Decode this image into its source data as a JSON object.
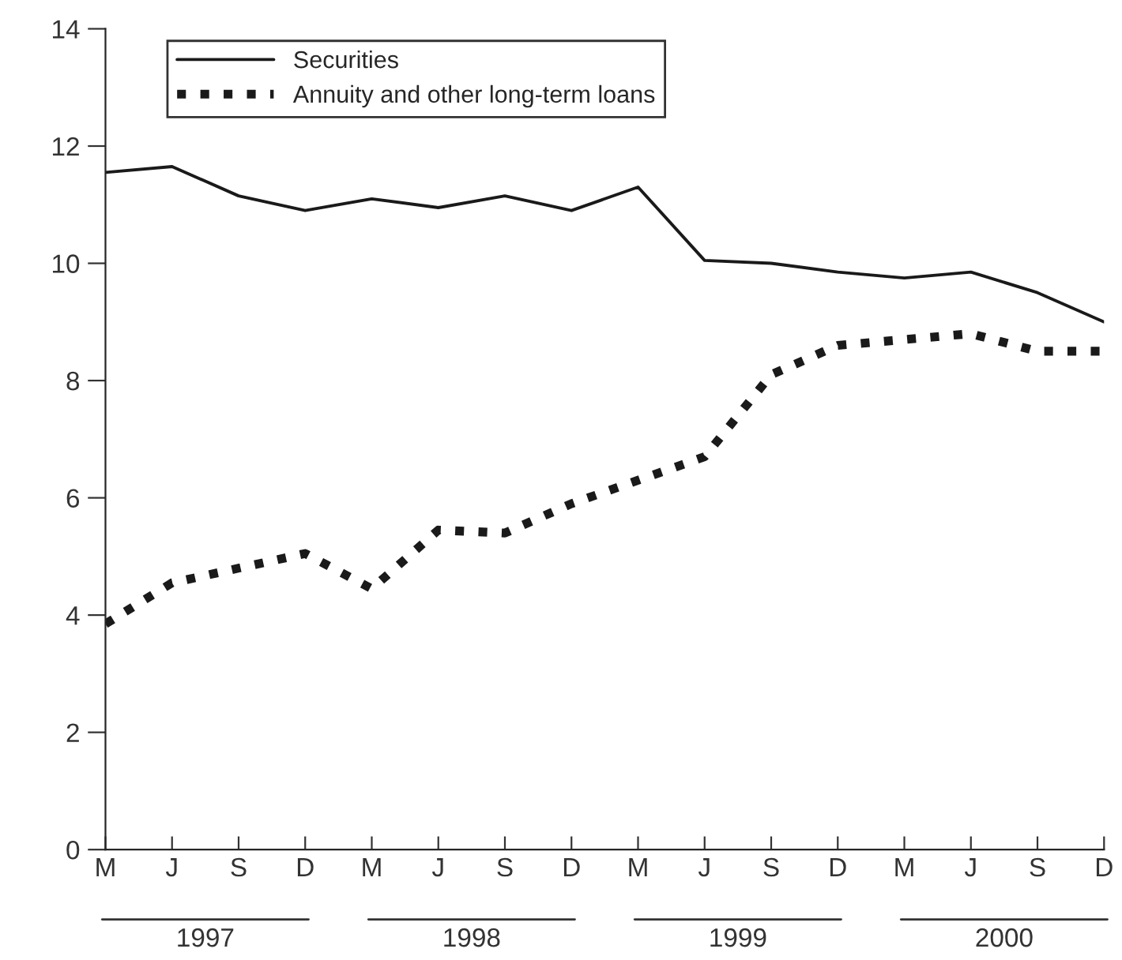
{
  "chart_data": {
    "type": "line",
    "categories": [
      "M",
      "J",
      "S",
      "D",
      "M",
      "J",
      "S",
      "D",
      "M",
      "J",
      "S",
      "D",
      "M",
      "J",
      "S",
      "D"
    ],
    "series": [
      {
        "name": "Securities",
        "color": "#1a1a1a",
        "line_style": "solid",
        "values": [
          11.55,
          11.65,
          11.15,
          10.9,
          11.1,
          10.95,
          11.15,
          10.9,
          11.3,
          10.05,
          10.0,
          9.85,
          9.75,
          9.85,
          9.5,
          9.0
        ]
      },
      {
        "name": "Annuity and other long-term loans",
        "color": "#1a1a1a",
        "line_style": "dotted",
        "values": [
          3.85,
          4.55,
          4.8,
          5.05,
          4.45,
          5.45,
          5.4,
          5.9,
          6.3,
          6.7,
          8.1,
          8.6,
          8.7,
          8.8,
          8.5,
          8.5
        ]
      }
    ],
    "annotations": [
      "1997",
      "1998",
      "1999",
      "2000"
    ],
    "ylim": [
      0,
      14
    ],
    "yticks": [
      0,
      2,
      4,
      6,
      8,
      10,
      12,
      14
    ],
    "grid": false,
    "legend": "top left",
    "marker": "none"
  }
}
